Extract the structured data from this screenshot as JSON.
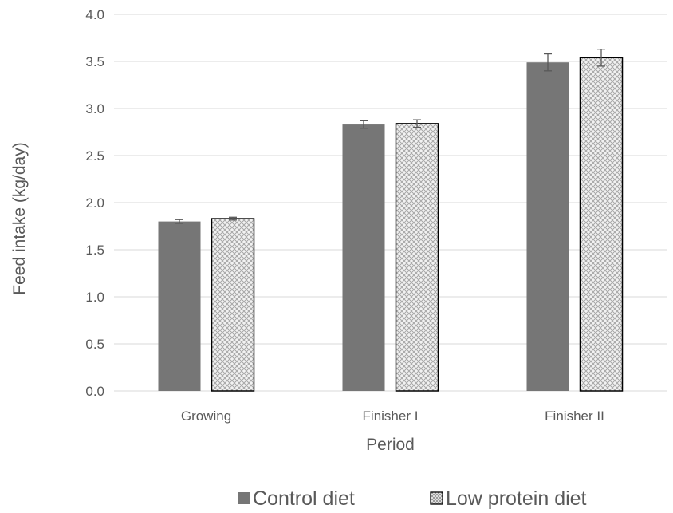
{
  "chart_data": {
    "type": "bar",
    "title": "",
    "xlabel": "Period",
    "ylabel": "Feed intake (kg/day)",
    "categories": [
      "Growing",
      "Finisher I",
      "Finisher II"
    ],
    "ylim": [
      0,
      4
    ],
    "ystep": 0.5,
    "yticks": [
      "0.0",
      "0.5",
      "1.0",
      "1.5",
      "2.0",
      "2.5",
      "3.0",
      "3.5",
      "4.0"
    ],
    "grid": true,
    "legend_position": "bottom",
    "series": [
      {
        "name": "Control diet",
        "values": [
          1.8,
          2.83,
          3.49
        ],
        "errors": [
          0.02,
          0.04,
          0.09
        ],
        "color": "#767676",
        "pattern": "solid"
      },
      {
        "name": "Low protein diet",
        "values": [
          1.83,
          2.84,
          3.54
        ],
        "errors": [
          0.015,
          0.04,
          0.09
        ],
        "color": "#d9d9d9",
        "pattern": "crosshatch"
      }
    ]
  }
}
